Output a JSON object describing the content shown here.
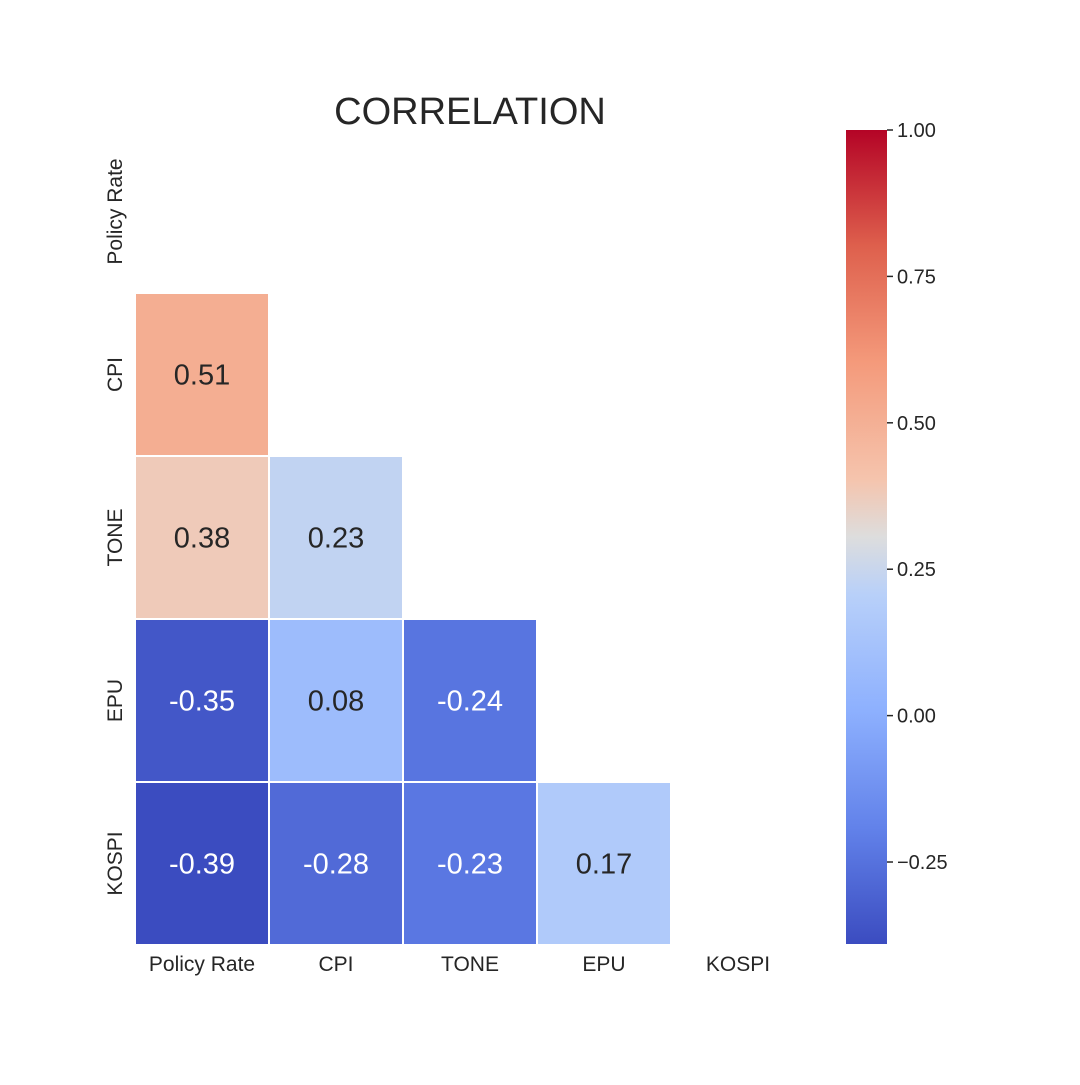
{
  "chart_data": {
    "type": "heatmap",
    "title": "CORRELATION",
    "variables": [
      "Policy Rate",
      "CPI",
      "TONE",
      "EPU",
      "KOSPI"
    ],
    "mask": "upper-triangle-including-diagonal",
    "cells": [
      {
        "row": "CPI",
        "col": "Policy Rate",
        "value": 0.51,
        "label": "0.51"
      },
      {
        "row": "TONE",
        "col": "Policy Rate",
        "value": 0.38,
        "label": "0.38"
      },
      {
        "row": "TONE",
        "col": "CPI",
        "value": 0.23,
        "label": "0.23"
      },
      {
        "row": "EPU",
        "col": "Policy Rate",
        "value": -0.35,
        "label": "-0.35"
      },
      {
        "row": "EPU",
        "col": "CPI",
        "value": 0.08,
        "label": "0.08"
      },
      {
        "row": "EPU",
        "col": "TONE",
        "value": -0.24,
        "label": "-0.24"
      },
      {
        "row": "KOSPI",
        "col": "Policy Rate",
        "value": -0.39,
        "label": "-0.39"
      },
      {
        "row": "KOSPI",
        "col": "CPI",
        "value": -0.28,
        "label": "-0.28"
      },
      {
        "row": "KOSPI",
        "col": "TONE",
        "value": -0.23,
        "label": "-0.23"
      },
      {
        "row": "KOSPI",
        "col": "EPU",
        "value": 0.17,
        "label": "0.17"
      }
    ],
    "colorbar": {
      "colormap": "coolwarm",
      "vmin": -0.39,
      "vmax": 1.0,
      "ticks": [
        1.0,
        0.75,
        0.5,
        0.25,
        0.0,
        -0.25
      ],
      "tick_labels": [
        "1.00",
        "0.75",
        "0.50",
        "0.25",
        "0.00",
        "−0.25"
      ]
    }
  }
}
